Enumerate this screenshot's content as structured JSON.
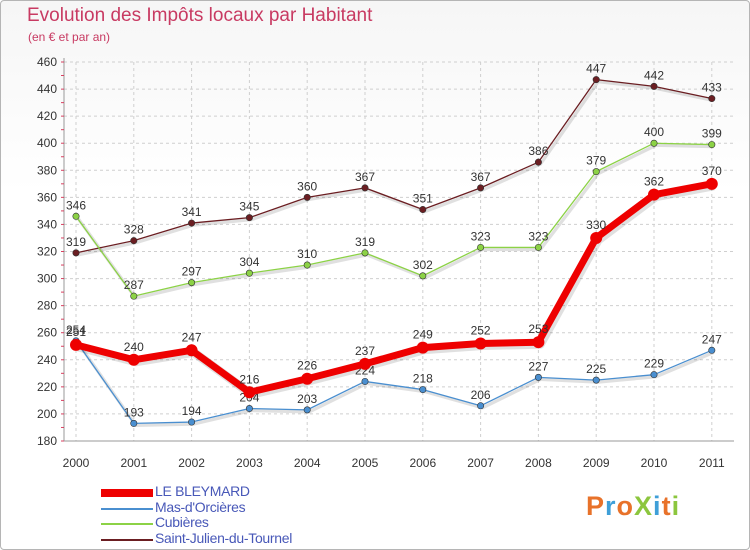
{
  "header": {
    "title": "Evolution des Impôts locaux par Habitant",
    "subtitle": "(en € et par an)"
  },
  "logo": {
    "text": "ProXiti",
    "colors": [
      "#e8722a",
      "#3f9fd8",
      "#e8722a",
      "#8cc63e",
      "#3f9fd8",
      "#e8722a",
      "#8cc63e"
    ]
  },
  "chart_data": {
    "type": "line",
    "title": "Evolution des Impôts locaux par Habitant",
    "subtitle": "(en € et par an)",
    "x": [
      "2000",
      "2001",
      "2002",
      "2003",
      "2004",
      "2005",
      "2006",
      "2007",
      "2008",
      "2009",
      "2010",
      "2011"
    ],
    "ylim": [
      180,
      460
    ],
    "yticks": [
      180,
      200,
      220,
      240,
      260,
      280,
      300,
      320,
      340,
      360,
      380,
      400,
      420,
      440,
      460
    ],
    "grid": true,
    "legend_position": "bottom-left",
    "series": [
      {
        "name": "Saint-Julien-du-Tournel",
        "color": "#6b1e22",
        "values": [
          319,
          328,
          341,
          345,
          360,
          367,
          351,
          367,
          386,
          447,
          442,
          433
        ]
      },
      {
        "name": "Cubières",
        "color": "#8cd246",
        "values": [
          346,
          287,
          297,
          304,
          310,
          319,
          302,
          323,
          323,
          379,
          400,
          399
        ]
      },
      {
        "name": "Mas-d'Orcières",
        "color": "#4a8fd0",
        "values": [
          254,
          193,
          194,
          204,
          203,
          224,
          218,
          206,
          227,
          225,
          229,
          247
        ]
      },
      {
        "name": "LE BLEYMARD",
        "color": "#ee0000",
        "values": [
          251,
          240,
          247,
          216,
          226,
          237,
          249,
          252,
          253,
          330,
          362,
          370
        ]
      }
    ],
    "legend_order": [
      "LE BLEYMARD",
      "Mas-d'Orcières",
      "Cubières",
      "Saint-Julien-du-Tournel"
    ]
  }
}
